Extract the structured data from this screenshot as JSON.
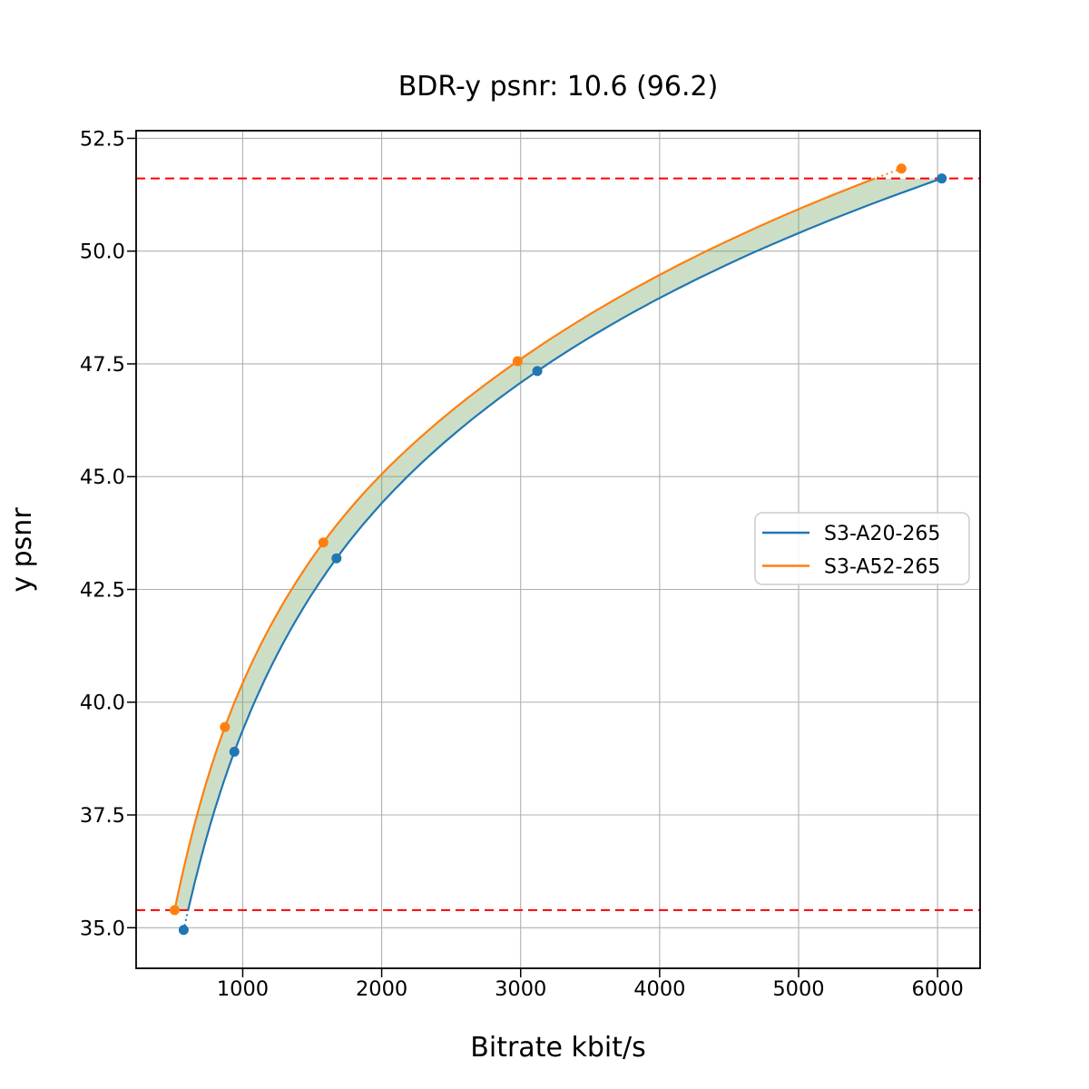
{
  "chart_data": {
    "type": "line",
    "title": "BDR-y psnr: 10.6 (96.2)",
    "xlabel": "Bitrate kbit/s",
    "ylabel": "y psnr",
    "xlim": [
      233,
      6306
    ],
    "ylim": [
      34.1,
      52.67
    ],
    "x_ticks": [
      1000,
      2000,
      3000,
      4000,
      5000,
      6000
    ],
    "y_ticks": [
      35.0,
      37.5,
      40.0,
      42.5,
      45.0,
      47.5,
      50.0,
      52.5
    ],
    "grid": true,
    "grid_color": "#b0b0b0",
    "legend_position": "center right",
    "bdr": {
      "value": 10.6,
      "percent": 96.2
    },
    "series": [
      {
        "name": "S3-A20-265",
        "color": "#1f77b4",
        "points": [
          [
            575,
            34.95
          ],
          [
            940,
            38.9
          ],
          [
            1675,
            43.19
          ],
          [
            3120,
            47.34
          ],
          [
            6030,
            51.61
          ]
        ]
      },
      {
        "name": "S3-A52-265",
        "color": "#ff7f0e",
        "points": [
          [
            510,
            35.39
          ],
          [
            872,
            39.45
          ],
          [
            1580,
            43.54
          ],
          [
            2978,
            47.56
          ],
          [
            5740,
            51.83
          ]
        ]
      }
    ],
    "integration_interval": {
      "psnr_low": 35.39,
      "psnr_high": 51.61
    },
    "hlines": [
      {
        "y": 35.39,
        "color": "#ff0000",
        "style": "dashed"
      },
      {
        "y": 51.61,
        "color": "#ff0000",
        "style": "dashed"
      }
    ],
    "fill_between": {
      "color": "rgba(112,161,92,0.35)"
    }
  }
}
